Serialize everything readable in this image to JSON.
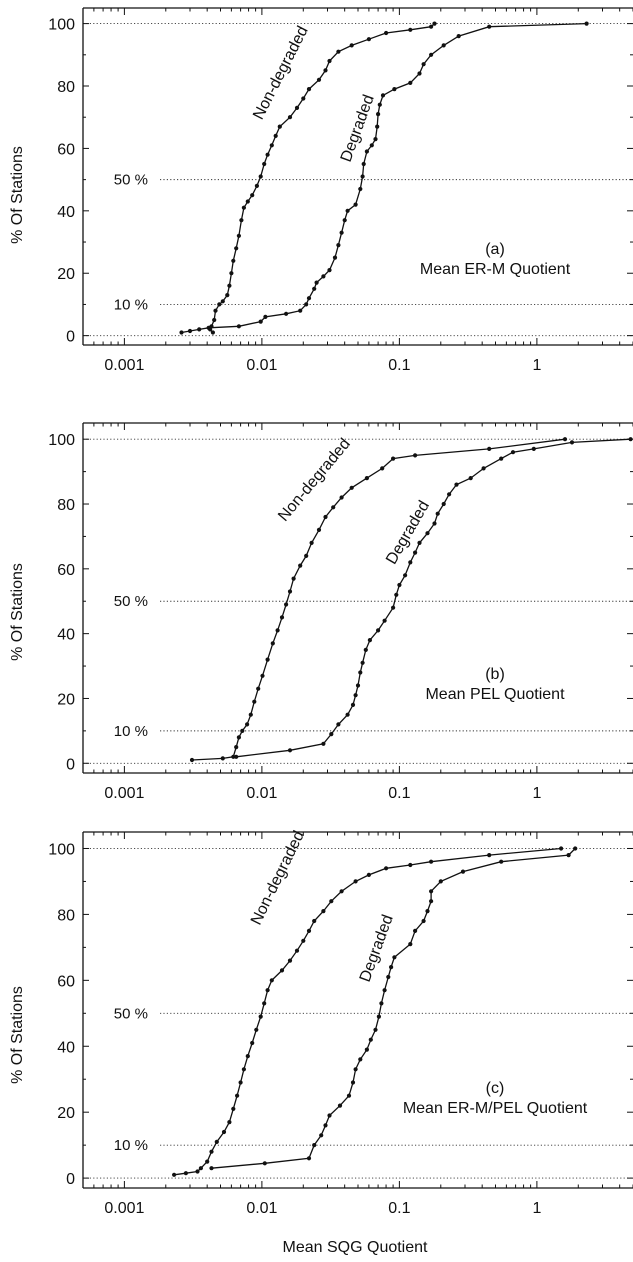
{
  "figure": {
    "x_axis_label": "Mean SQG Quotient",
    "y_axis_label": "% Of Stations"
  },
  "chart_data": [
    {
      "type": "line",
      "panel_label": "(a)",
      "title": "Mean ER-M Quotient",
      "xlabel": "",
      "ylabel": "% Of Stations",
      "xscale": "log",
      "xlim": [
        0.0005,
        5
      ],
      "ylim": [
        -3,
        105
      ],
      "x_tick_labels": [
        "0.001",
        "0.01",
        "0.1",
        "1"
      ],
      "y_tick_labels": [
        "0",
        "20",
        "40",
        "60",
        "80",
        "100"
      ],
      "reference_lines": [
        {
          "y": 0,
          "label": ""
        },
        {
          "y": 10,
          "label": "10 %"
        },
        {
          "y": 50,
          "label": "50 %"
        },
        {
          "y": 100,
          "label": ""
        }
      ],
      "series": [
        {
          "name": "Non-degraded",
          "points": [
            [
              0.0044,
              1
            ],
            [
              0.0042,
              2
            ],
            [
              0.0043,
              3
            ],
            [
              0.0045,
              5
            ],
            [
              0.0046,
              8
            ],
            [
              0.0049,
              10
            ],
            [
              0.0052,
              11
            ],
            [
              0.0056,
              13
            ],
            [
              0.0058,
              16
            ],
            [
              0.006,
              20
            ],
            [
              0.0062,
              24
            ],
            [
              0.0065,
              28
            ],
            [
              0.0068,
              32
            ],
            [
              0.0071,
              37
            ],
            [
              0.0074,
              41
            ],
            [
              0.0079,
              43
            ],
            [
              0.0085,
              45
            ],
            [
              0.0092,
              48
            ],
            [
              0.0098,
              51
            ],
            [
              0.0104,
              55
            ],
            [
              0.011,
              58
            ],
            [
              0.0118,
              61
            ],
            [
              0.0126,
              64
            ],
            [
              0.0135,
              67
            ],
            [
              0.016,
              70
            ],
            [
              0.018,
              73
            ],
            [
              0.02,
              76
            ],
            [
              0.022,
              79
            ],
            [
              0.026,
              82
            ],
            [
              0.029,
              85
            ],
            [
              0.031,
              88
            ],
            [
              0.036,
              91
            ],
            [
              0.045,
              93
            ],
            [
              0.06,
              95
            ],
            [
              0.08,
              97
            ],
            [
              0.12,
              98
            ],
            [
              0.17,
              99
            ],
            [
              0.18,
              100
            ]
          ]
        },
        {
          "name": "Degraded",
          "points": [
            [
              0.0026,
              1
            ],
            [
              0.003,
              1.5
            ],
            [
              0.0035,
              2
            ],
            [
              0.0041,
              2.5
            ],
            [
              0.0068,
              3
            ],
            [
              0.0098,
              4.5
            ],
            [
              0.0106,
              6
            ],
            [
              0.015,
              7
            ],
            [
              0.019,
              8
            ],
            [
              0.021,
              10
            ],
            [
              0.022,
              12
            ],
            [
              0.024,
              15
            ],
            [
              0.025,
              17
            ],
            [
              0.028,
              19
            ],
            [
              0.031,
              21
            ],
            [
              0.034,
              25
            ],
            [
              0.036,
              29
            ],
            [
              0.038,
              33
            ],
            [
              0.04,
              37
            ],
            [
              0.042,
              40
            ],
            [
              0.048,
              42
            ],
            [
              0.052,
              47
            ],
            [
              0.054,
              51
            ],
            [
              0.055,
              55
            ],
            [
              0.058,
              59
            ],
            [
              0.063,
              61
            ],
            [
              0.067,
              63
            ],
            [
              0.069,
              67
            ],
            [
              0.07,
              71
            ],
            [
              0.072,
              74
            ],
            [
              0.076,
              77
            ],
            [
              0.092,
              79
            ],
            [
              0.12,
              81
            ],
            [
              0.14,
              84
            ],
            [
              0.15,
              87
            ],
            [
              0.17,
              90
            ],
            [
              0.21,
              93
            ],
            [
              0.27,
              96
            ],
            [
              0.45,
              99
            ],
            [
              2.3,
              100
            ]
          ]
        }
      ]
    },
    {
      "type": "line",
      "panel_label": "(b)",
      "title": "Mean PEL Quotient",
      "xlabel": "",
      "ylabel": "% Of Stations",
      "xscale": "log",
      "xlim": [
        0.0005,
        5
      ],
      "ylim": [
        -3,
        105
      ],
      "x_tick_labels": [
        "0.001",
        "0.01",
        "0.1",
        "1"
      ],
      "y_tick_labels": [
        "0",
        "20",
        "40",
        "60",
        "80",
        "100"
      ],
      "reference_lines": [
        {
          "y": 0,
          "label": ""
        },
        {
          "y": 10,
          "label": "10 %"
        },
        {
          "y": 50,
          "label": "50 %"
        },
        {
          "y": 100,
          "label": ""
        }
      ],
      "series": [
        {
          "name": "Non-degraded",
          "points": [
            [
              0.0031,
              1
            ],
            [
              0.0052,
              1.5
            ],
            [
              0.0062,
              2
            ],
            [
              0.0065,
              5
            ],
            [
              0.0068,
              8
            ],
            [
              0.0072,
              10
            ],
            [
              0.0078,
              12
            ],
            [
              0.0083,
              15
            ],
            [
              0.0088,
              19
            ],
            [
              0.0094,
              23
            ],
            [
              0.0101,
              27
            ],
            [
              0.011,
              32
            ],
            [
              0.012,
              37
            ],
            [
              0.013,
              41
            ],
            [
              0.014,
              45
            ],
            [
              0.015,
              49
            ],
            [
              0.016,
              53
            ],
            [
              0.017,
              57
            ],
            [
              0.019,
              61
            ],
            [
              0.021,
              64
            ],
            [
              0.023,
              68
            ],
            [
              0.026,
              72
            ],
            [
              0.029,
              76
            ],
            [
              0.033,
              79
            ],
            [
              0.038,
              82
            ],
            [
              0.045,
              85
            ],
            [
              0.058,
              88
            ],
            [
              0.075,
              91
            ],
            [
              0.09,
              94
            ],
            [
              0.13,
              95
            ],
            [
              0.45,
              97
            ],
            [
              1.6,
              100
            ]
          ]
        },
        {
          "name": "Degraded",
          "points": [
            [
              0.0065,
              2
            ],
            [
              0.016,
              4
            ],
            [
              0.028,
              6
            ],
            [
              0.032,
              9
            ],
            [
              0.036,
              12
            ],
            [
              0.042,
              15
            ],
            [
              0.046,
              18
            ],
            [
              0.048,
              21
            ],
            [
              0.05,
              24
            ],
            [
              0.052,
              28
            ],
            [
              0.054,
              31
            ],
            [
              0.057,
              35
            ],
            [
              0.061,
              38
            ],
            [
              0.07,
              41
            ],
            [
              0.078,
              44
            ],
            [
              0.09,
              48
            ],
            [
              0.095,
              52
            ],
            [
              0.1,
              55
            ],
            [
              0.11,
              58
            ],
            [
              0.12,
              62
            ],
            [
              0.13,
              65
            ],
            [
              0.14,
              68
            ],
            [
              0.16,
              71
            ],
            [
              0.18,
              74
            ],
            [
              0.19,
              77
            ],
            [
              0.21,
              80
            ],
            [
              0.23,
              83
            ],
            [
              0.26,
              86
            ],
            [
              0.33,
              88
            ],
            [
              0.41,
              91
            ],
            [
              0.55,
              94
            ],
            [
              0.67,
              96
            ],
            [
              0.95,
              97
            ],
            [
              1.8,
              99
            ],
            [
              4.8,
              100
            ]
          ]
        }
      ]
    },
    {
      "type": "line",
      "panel_label": "(c)",
      "title": "Mean ER-M/PEL Quotient",
      "xlabel": "Mean SQG Quotient",
      "ylabel": "% Of Stations",
      "xscale": "log",
      "xlim": [
        0.0005,
        5
      ],
      "ylim": [
        -3,
        105
      ],
      "x_tick_labels": [
        "0.001",
        "0.01",
        "0.1",
        "1"
      ],
      "y_tick_labels": [
        "0",
        "20",
        "40",
        "60",
        "80",
        "100"
      ],
      "reference_lines": [
        {
          "y": 0,
          "label": ""
        },
        {
          "y": 10,
          "label": "10 %"
        },
        {
          "y": 50,
          "label": "50 %"
        },
        {
          "y": 100,
          "label": ""
        }
      ],
      "series": [
        {
          "name": "Non-degraded",
          "points": [
            [
              0.0023,
              1
            ],
            [
              0.0028,
              1.5
            ],
            [
              0.0034,
              2
            ],
            [
              0.0036,
              3
            ],
            [
              0.004,
              5
            ],
            [
              0.0043,
              8
            ],
            [
              0.0047,
              11
            ],
            [
              0.0053,
              14
            ],
            [
              0.0058,
              17
            ],
            [
              0.0062,
              21
            ],
            [
              0.0066,
              25
            ],
            [
              0.007,
              29
            ],
            [
              0.0074,
              33
            ],
            [
              0.0079,
              37
            ],
            [
              0.0085,
              41
            ],
            [
              0.0091,
              45
            ],
            [
              0.0098,
              49
            ],
            [
              0.0104,
              53
            ],
            [
              0.011,
              57
            ],
            [
              0.0118,
              60
            ],
            [
              0.014,
              63
            ],
            [
              0.016,
              66
            ],
            [
              0.018,
              69
            ],
            [
              0.02,
              72
            ],
            [
              0.022,
              75
            ],
            [
              0.024,
              78
            ],
            [
              0.028,
              81
            ],
            [
              0.032,
              84
            ],
            [
              0.038,
              87
            ],
            [
              0.048,
              90
            ],
            [
              0.06,
              92
            ],
            [
              0.08,
              94
            ],
            [
              0.12,
              95
            ],
            [
              0.17,
              96
            ],
            [
              0.45,
              98
            ],
            [
              1.5,
              100
            ]
          ]
        },
        {
          "name": "Degraded",
          "points": [
            [
              0.0043,
              3
            ],
            [
              0.0105,
              4.5
            ],
            [
              0.022,
              6
            ],
            [
              0.024,
              10
            ],
            [
              0.027,
              13
            ],
            [
              0.029,
              16
            ],
            [
              0.031,
              19
            ],
            [
              0.037,
              22
            ],
            [
              0.043,
              25
            ],
            [
              0.046,
              29
            ],
            [
              0.048,
              33
            ],
            [
              0.052,
              36
            ],
            [
              0.058,
              39
            ],
            [
              0.062,
              42
            ],
            [
              0.067,
              45
            ],
            [
              0.071,
              49
            ],
            [
              0.074,
              53
            ],
            [
              0.078,
              57
            ],
            [
              0.083,
              61
            ],
            [
              0.087,
              64
            ],
            [
              0.092,
              67
            ],
            [
              0.12,
              71
            ],
            [
              0.13,
              75
            ],
            [
              0.15,
              78
            ],
            [
              0.16,
              81
            ],
            [
              0.17,
              84
            ],
            [
              0.17,
              87
            ],
            [
              0.2,
              90
            ],
            [
              0.29,
              93
            ],
            [
              0.55,
              96
            ],
            [
              1.7,
              98
            ],
            [
              1.9,
              100
            ]
          ]
        }
      ]
    }
  ]
}
